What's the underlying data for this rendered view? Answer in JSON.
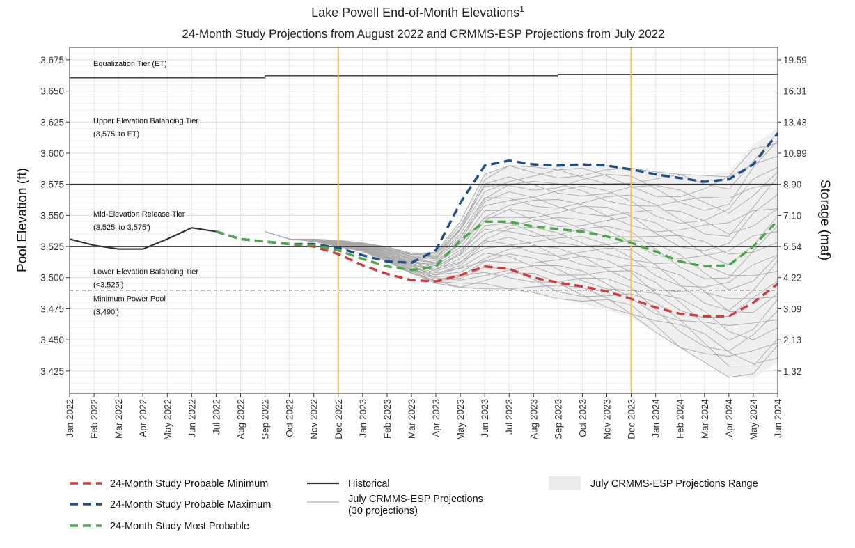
{
  "chart_data": {
    "type": "line",
    "title": "Lake Powell End-of-Month  Elevations",
    "title_superscript": "1",
    "subtitle": "24-Month Study Projections from August 2022 and CRMMS-ESP Projections from July 2022",
    "ylabel": "Pool Elevation (ft)",
    "y2label": "Storage (maf)",
    "ylim": [
      3407,
      3685
    ],
    "y_ticks": [
      "3,425",
      "3,450",
      "3,475",
      "3,500",
      "3,525",
      "3,550",
      "3,575",
      "3,600",
      "3,625",
      "3,650",
      "3,675"
    ],
    "y_tick_values": [
      3425,
      3450,
      3475,
      3500,
      3525,
      3550,
      3575,
      3600,
      3625,
      3650,
      3675
    ],
    "y2_ticks": [
      "1.32",
      "2.13",
      "3.09",
      "4.22",
      "5.54",
      "7.10",
      "8.90",
      "10.99",
      "13.43",
      "16.31",
      "19.59"
    ],
    "x": [
      "Jan 2022",
      "Feb 2022",
      "Mar 2022",
      "Apr 2022",
      "May 2022",
      "Jun 2022",
      "Jul 2022",
      "Aug 2022",
      "Sep 2022",
      "Oct 2022",
      "Nov 2022",
      "Dec 2022",
      "Jan 2023",
      "Feb 2023",
      "Mar 2023",
      "Apr 2023",
      "May 2023",
      "Jun 2023",
      "Jul 2023",
      "Aug 2023",
      "Sep 2023",
      "Oct 2023",
      "Nov 2023",
      "Dec 2023",
      "Jan 2024",
      "Feb 2024",
      "Mar 2024",
      "Apr 2024",
      "May 2024",
      "Jun 2024"
    ],
    "grid": true,
    "legend_position": "bottom",
    "vertical_markers": [
      "Dec 2022",
      "Dec 2023"
    ],
    "tier_lines": [
      {
        "name": "upper-tier-line",
        "value": 3575
      },
      {
        "name": "lower-tier-line",
        "value": 3525
      },
      {
        "name": "minimum-power-pool-line",
        "value": 3490,
        "dashed": true
      }
    ],
    "equalization_steps": [
      {
        "from": "Jan 2022",
        "to": "Sep 2022",
        "value": 3660.5
      },
      {
        "from": "Sep 2022",
        "to": "Sep 2023",
        "value": 3662.2
      },
      {
        "from": "Sep 2023",
        "to": "Jun 2024",
        "value": 3663.3
      }
    ],
    "annotations": [
      {
        "lines": [
          "Equalization Tier (ET)"
        ],
        "y": 3670
      },
      {
        "lines": [
          "Upper Elevation Balancing Tier",
          "(3,575' to ET)"
        ],
        "y": 3624
      },
      {
        "lines": [
          "Mid-Elevation Release Tier",
          "(3,525' to 3,575')"
        ],
        "y": 3549
      },
      {
        "lines": [
          "Lower Elevation Balancing Tier",
          "(<3,525')"
        ],
        "y": 3503
      },
      {
        "lines": [
          "Minimum Power Pool",
          "(3,490')"
        ],
        "y": 3481
      }
    ],
    "series": [
      {
        "name": "Historical",
        "color": "#333333",
        "values": [
          3531,
          3526,
          3523,
          3523,
          3531,
          3540,
          3537,
          null,
          null,
          null,
          null,
          null,
          null,
          null,
          null,
          null,
          null,
          null,
          null,
          null,
          null,
          null,
          null,
          null,
          null,
          null,
          null,
          null,
          null,
          null
        ]
      },
      {
        "name": "24-Month Study Probable Minimum",
        "color": "#d03b3b",
        "values": [
          null,
          null,
          null,
          null,
          null,
          null,
          3537,
          3531,
          3529,
          3527,
          3525,
          3519,
          3510,
          3503,
          3498,
          3497,
          3502,
          3509,
          3507,
          3500,
          3496,
          3493,
          3489,
          3483,
          3476,
          3471,
          3469,
          3469,
          3480,
          3495
        ]
      },
      {
        "name": "24-Month Study Probable Maximum",
        "color": "#1f4e8c",
        "values": [
          null,
          null,
          null,
          null,
          null,
          null,
          3537,
          3531,
          3529,
          3527,
          3527,
          3524,
          3518,
          3513,
          3512,
          3522,
          3560,
          3590,
          3594,
          3591,
          3590,
          3591,
          3590,
          3587,
          3583,
          3580,
          3577,
          3579,
          3591,
          3616
        ]
      },
      {
        "name": "24-Month Study Most Probable",
        "color": "#4aa84a",
        "values": [
          null,
          null,
          null,
          null,
          null,
          null,
          3537,
          3531,
          3529,
          3527,
          3526,
          3522,
          3515,
          3509,
          3506,
          3509,
          3530,
          3545,
          3545,
          3541,
          3539,
          3537,
          3533,
          3528,
          3521,
          3513,
          3509,
          3510,
          3525,
          3546
        ]
      }
    ],
    "esp_range": {
      "name": "July CRMMS-ESP Projections Range",
      "upper": [
        3537,
        3531,
        3531,
        3530,
        3528,
        3525,
        3520,
        3521,
        3545,
        3583,
        3590,
        3589,
        3589,
        3590,
        3589,
        3588,
        3585,
        3583,
        3582,
        3585,
        3607,
        3620
      ],
      "lower": [
        3537,
        3531,
        3529,
        3525,
        3521,
        3513,
        3503,
        3495,
        3491,
        3491,
        3491,
        3488,
        3483,
        3479,
        3474,
        3468,
        3456,
        3444,
        3432,
        3420,
        3419,
        3432
      ]
    },
    "esp_traces_count": 30,
    "legend": [
      {
        "label": "24-Month Study Probable Minimum",
        "style": "dashed",
        "color": "#d03b3b"
      },
      {
        "label": "24-Month Study Probable Maximum",
        "style": "dashed",
        "color": "#1f4e8c"
      },
      {
        "label": "24-Month Study Most Probable",
        "style": "dashed",
        "color": "#4aa84a"
      },
      {
        "label": "Historical",
        "style": "solid",
        "color": "#333333"
      },
      {
        "label_lines": [
          "July CRMMS-ESP Projections",
          "(30 projections)"
        ],
        "style": "thin",
        "color": "#9a9a9a"
      },
      {
        "label": "July CRMMS-ESP Projections Range",
        "style": "fill",
        "color": "#ececec"
      }
    ]
  }
}
